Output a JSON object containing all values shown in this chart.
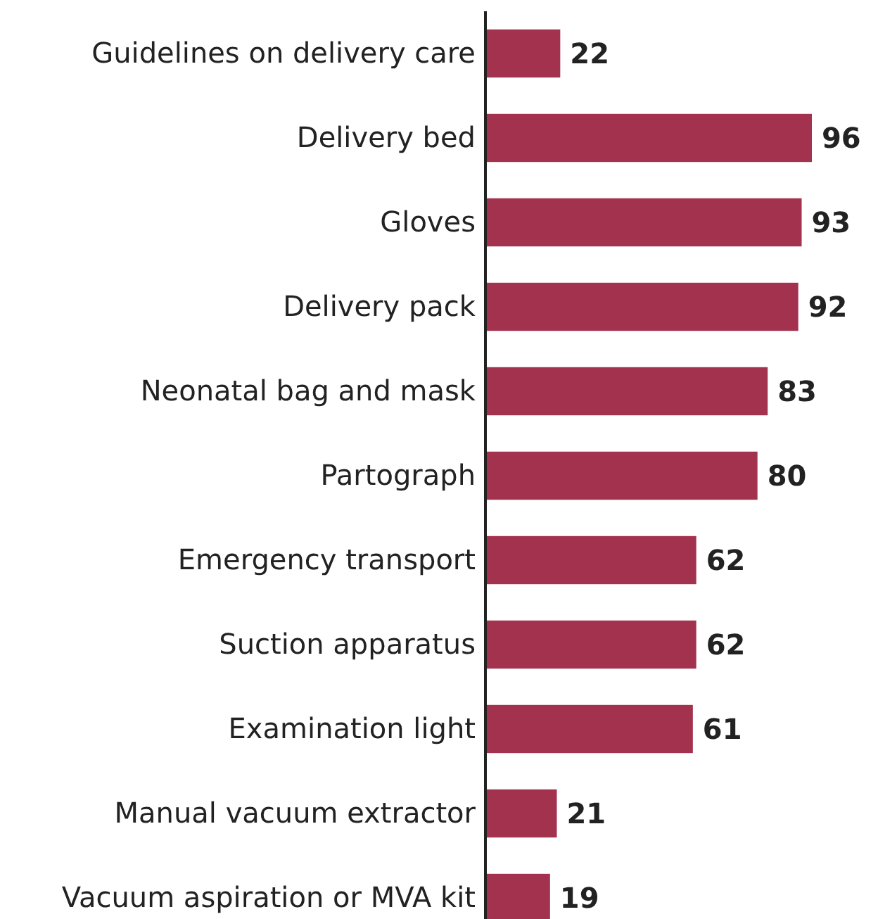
{
  "chart_data": {
    "type": "bar",
    "orientation": "horizontal",
    "data_labels": true,
    "categories": [
      "Guidelines on delivery care",
      "Delivery bed",
      "Gloves",
      "Delivery pack",
      "Neonatal bag and mask",
      "Partograph",
      "Emergency transport",
      "Suction apparatus",
      "Examination light",
      "Manual vacuum extractor",
      "Vacuum aspiration or MVA kit"
    ],
    "values": [
      22,
      96,
      93,
      92,
      83,
      80,
      62,
      62,
      61,
      21,
      19
    ],
    "color": "#a3324f"
  }
}
